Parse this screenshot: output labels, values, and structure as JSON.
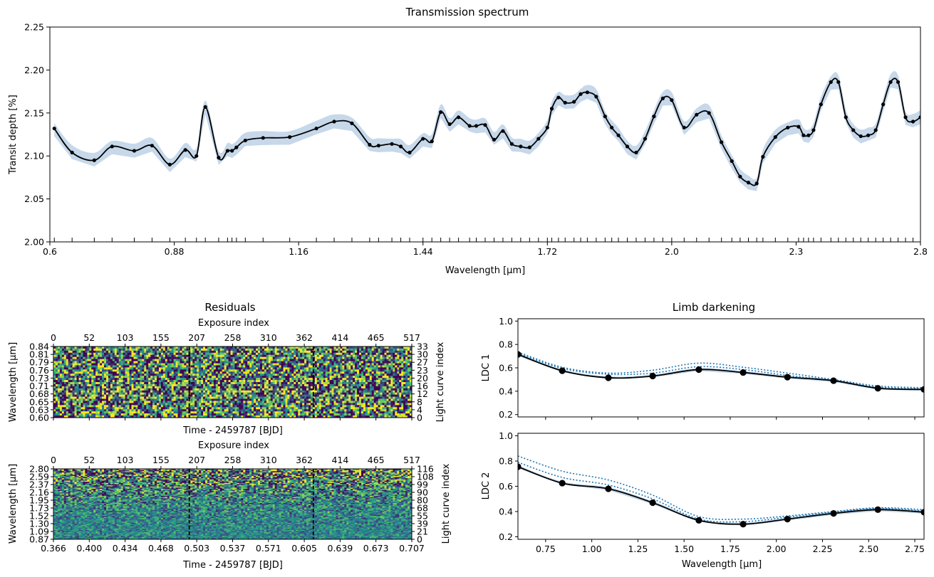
{
  "chart_data": [
    {
      "type": "line",
      "title": "Transmission spectrum",
      "xlabel": "Wavelength [$\\mu$m]",
      "ylabel": "Transit depth [%]",
      "xlim": [
        0.6,
        2.8
      ],
      "ylim": [
        2.0,
        2.25
      ],
      "xticks": [
        "0.6",
        "0.88",
        "1.16",
        "1.44",
        "1.72",
        "2.0",
        "2.3",
        "2.8"
      ],
      "yticks": [
        "2.00",
        "2.05",
        "2.10",
        "2.15",
        "2.20",
        "2.25"
      ],
      "x": [
        0.61,
        0.65,
        0.7,
        0.74,
        0.79,
        0.83,
        0.87,
        0.905,
        0.93,
        0.95,
        0.98,
        1.0,
        1.01,
        1.02,
        1.04,
        1.08,
        1.14,
        1.2,
        1.24,
        1.28,
        1.32,
        1.34,
        1.37,
        1.39,
        1.41,
        1.44,
        1.46,
        1.48,
        1.5,
        1.52,
        1.545,
        1.56,
        1.58,
        1.6,
        1.62,
        1.64,
        1.66,
        1.68,
        1.7,
        1.72,
        1.73,
        1.745,
        1.76,
        1.78,
        1.795,
        1.81,
        1.83,
        1.85,
        1.865,
        1.88,
        1.9,
        1.92,
        1.94,
        1.96,
        1.98,
        2.0,
        2.03,
        2.06,
        2.09,
        2.12,
        2.145,
        2.165,
        2.185,
        2.205,
        2.22,
        2.25,
        2.28,
        2.31,
        2.33,
        2.35,
        2.37,
        2.4,
        2.44,
        2.47,
        2.5,
        2.53,
        2.56,
        2.59,
        2.62,
        2.65,
        2.68,
        2.71,
        2.74,
        2.77,
        2.8
      ],
      "values": [
        2.132,
        2.104,
        2.095,
        2.111,
        2.106,
        2.112,
        2.09,
        2.107,
        2.1,
        2.157,
        2.098,
        2.106,
        2.106,
        2.11,
        2.118,
        2.121,
        2.122,
        2.132,
        2.14,
        2.138,
        2.113,
        2.112,
        2.114,
        2.111,
        2.104,
        2.12,
        2.117,
        2.151,
        2.137,
        2.145,
        2.135,
        2.135,
        2.136,
        2.119,
        2.129,
        2.114,
        2.111,
        2.11,
        2.12,
        2.133,
        2.155,
        2.168,
        2.162,
        2.163,
        2.172,
        2.174,
        2.169,
        2.146,
        2.133,
        2.124,
        2.111,
        2.104,
        2.12,
        2.146,
        2.167,
        2.165,
        2.133,
        2.148,
        2.15,
        2.116,
        2.094,
        2.076,
        2.069,
        2.068,
        2.099,
        2.122,
        2.133,
        2.134,
        2.124,
        2.124,
        2.13,
        2.16,
        2.186,
        2.186,
        2.145,
        2.13,
        2.123,
        2.124,
        2.13,
        2.16,
        2.186,
        2.186,
        2.145,
        2.14,
        2.145
      ],
      "uncertainty": 0.006,
      "grid": false
    },
    {
      "type": "heatmap",
      "title": "Residuals",
      "xlabel": "Time - 2459787 [BJD]",
      "ylabel": "Wavelength [$\\mu$m]",
      "top_xlabel": "Exposure index",
      "right_ylabel": "Light curve index",
      "top_xticks": [
        "0",
        "52",
        "103",
        "155",
        "207",
        "258",
        "310",
        "362",
        "414",
        "465",
        "517"
      ],
      "yticks": [
        "0.60",
        "0.63",
        "0.65",
        "0.68",
        "0.71",
        "0.73",
        "0.76",
        "0.79",
        "0.81",
        "0.84"
      ],
      "right_yticks": [
        "0",
        "4",
        "8",
        "12",
        "16",
        "20",
        "23",
        "27",
        "30",
        "33"
      ],
      "xticks": [],
      "rows": 34,
      "columns": 517,
      "markers_exposure": [
        196,
        375
      ]
    },
    {
      "type": "heatmap",
      "xlabel": "Time - 2459787 [BJD]",
      "ylabel": "Wavelength [$\\mu$m]",
      "top_xlabel": "Exposure index",
      "right_ylabel": "Light curve index",
      "top_xticks": [
        "0",
        "52",
        "103",
        "155",
        "207",
        "258",
        "310",
        "362",
        "414",
        "465",
        "517"
      ],
      "yticks": [
        "0.87",
        "1.09",
        "1.30",
        "1.52",
        "1.73",
        "1.95",
        "2.16",
        "2.37",
        "2.59",
        "2.80"
      ],
      "right_yticks": [
        "0",
        "21",
        "39",
        "55",
        "68",
        "80",
        "90",
        "99",
        "108",
        "116"
      ],
      "xticks": [
        "0.366",
        "0.400",
        "0.434",
        "0.468",
        "0.503",
        "0.537",
        "0.571",
        "0.605",
        "0.639",
        "0.673",
        "0.707"
      ],
      "rows": 117,
      "columns": 517,
      "markers_exposure": [
        196,
        375
      ]
    },
    {
      "type": "line",
      "title": "Limb darkening",
      "ylabel": "LDC 1",
      "xlim": [
        0.6,
        2.8
      ],
      "ylim": [
        0.18,
        1.02
      ],
      "yticks": [
        "0.2",
        "0.4",
        "0.6",
        "0.8",
        "1.0"
      ],
      "points_x": [
        0.6,
        0.84,
        1.09,
        1.33,
        1.58,
        1.82,
        2.06,
        2.31,
        2.55,
        2.8
      ],
      "points_y": [
        0.715,
        0.575,
        0.515,
        0.53,
        0.585,
        0.56,
        0.52,
        0.49,
        0.425,
        0.415
      ],
      "model_upper": [
        0.735,
        0.605,
        0.555,
        0.58,
        0.64,
        0.605,
        0.555,
        0.5,
        0.445,
        0.43
      ],
      "model_lower": [
        0.725,
        0.595,
        0.545,
        0.555,
        0.61,
        0.585,
        0.535,
        0.49,
        0.435,
        0.42
      ]
    },
    {
      "type": "line",
      "xlabel": "Wavelength [$\\mu$m]",
      "ylabel": "LDC 2",
      "xlim": [
        0.6,
        2.8
      ],
      "ylim": [
        0.18,
        1.02
      ],
      "xticks": [
        "0.75",
        "1.00",
        "1.25",
        "1.50",
        "1.75",
        "2.00",
        "2.25",
        "2.50",
        "2.75"
      ],
      "yticks": [
        "0.2",
        "0.4",
        "0.6",
        "0.8",
        "1.0"
      ],
      "points_x": [
        0.6,
        0.84,
        1.09,
        1.33,
        1.58,
        1.82,
        2.06,
        2.31,
        2.55,
        2.8
      ],
      "points_y": [
        0.755,
        0.625,
        0.58,
        0.47,
        0.33,
        0.3,
        0.34,
        0.385,
        0.415,
        0.395
      ],
      "model_upper": [
        0.84,
        0.72,
        0.65,
        0.53,
        0.36,
        0.34,
        0.365,
        0.4,
        0.43,
        0.415
      ],
      "model_lower": [
        0.79,
        0.67,
        0.61,
        0.5,
        0.34,
        0.32,
        0.355,
        0.395,
        0.425,
        0.405
      ]
    }
  ]
}
